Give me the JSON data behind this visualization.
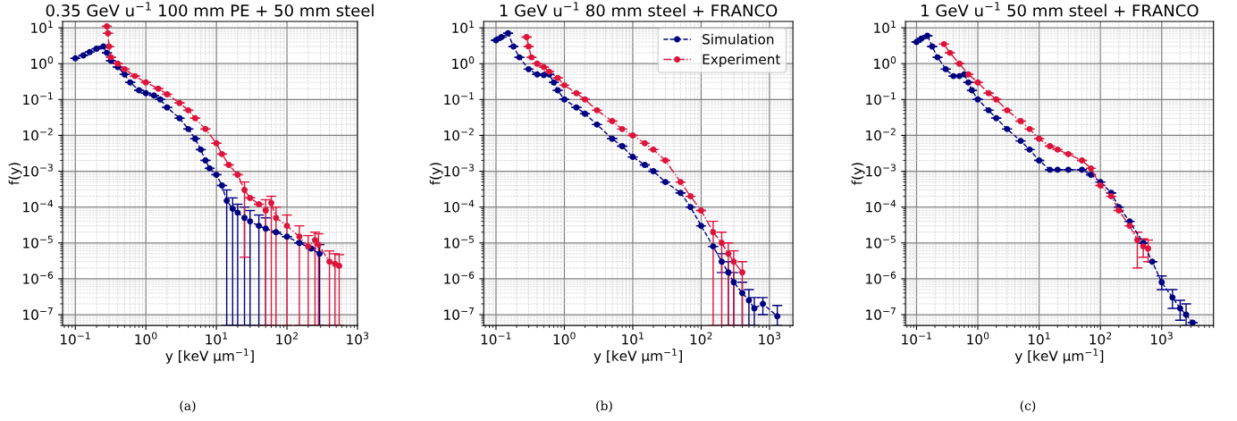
{
  "chart_data": [
    {
      "type": "line",
      "title": "0.35 GeV u$^{−1}$ 100 mm PE + 50 mm steel",
      "xlabel": "y [keV µm$^{−1}$]",
      "ylabel": "f(y)",
      "log": "xy",
      "grid": true,
      "marker": "circle",
      "legend": false,
      "xlim": [
        0.066,
        1000
      ],
      "ylim": [
        5e-08,
        15
      ],
      "xticks": [
        {
          "value": 0.1,
          "label": "10$^{−1}$"
        },
        {
          "value": 1,
          "label": "10$^{0}$"
        },
        {
          "value": 10,
          "label": "10$^{1}$"
        },
        {
          "value": 100,
          "label": "10$^{2}$"
        },
        {
          "value": 1000,
          "label": "10$^{3}$"
        }
      ],
      "yticks": [
        {
          "value": 1e-07,
          "label": "10$^{−7}$"
        },
        {
          "value": 1e-06,
          "label": "10$^{−6}$"
        },
        {
          "value": 1e-05,
          "label": "10$^{−5}$"
        },
        {
          "value": 0.0001,
          "label": "10$^{−4}$"
        },
        {
          "value": 0.001,
          "label": "10$^{−3}$"
        },
        {
          "value": 0.01,
          "label": "10$^{−2}$"
        },
        {
          "value": 0.1,
          "label": "10$^{−1}$"
        },
        {
          "value": 1,
          "label": "10$^{0}$"
        },
        {
          "value": 10,
          "label": "10$^{1}$"
        }
      ],
      "annotations": [
        "(a)"
      ],
      "series": [
        {
          "color": "#000080",
          "line_style": "dashed",
          "x": [
            0.1,
            0.13,
            0.16,
            0.2,
            0.25,
            0.28,
            0.32,
            0.4,
            0.5,
            0.6,
            0.8,
            1.0,
            1.3,
            1.6,
            2,
            3,
            4,
            5,
            6,
            7,
            8,
            10,
            12,
            14,
            17,
            20,
            25,
            30,
            40,
            50,
            70,
            100,
            150,
            220,
            290
          ],
          "values": [
            1.4,
            1.7,
            2.1,
            2.6,
            3.0,
            2.0,
            1.2,
            0.8,
            0.5,
            0.3,
            0.18,
            0.15,
            0.13,
            0.1,
            0.06,
            0.03,
            0.015,
            0.008,
            0.004,
            0.002,
            0.0012,
            0.0008,
            0.0004,
            0.00015,
            9e-05,
            7e-05,
            5e-05,
            4e-05,
            3e-05,
            2.5e-05,
            2e-05,
            1.5e-05,
            1e-05,
            7e-06,
            5e-06
          ],
          "errors": [
            null,
            null,
            null,
            null,
            null,
            null,
            null,
            null,
            null,
            null,
            null,
            null,
            null,
            null,
            null,
            null,
            null,
            null,
            null,
            null,
            null,
            null,
            null,
            [
              5e-08,
              0.0003
            ],
            [
              5e-08,
              0.00018
            ],
            [
              5e-08,
              0.00012
            ],
            [
              5e-08,
              0.0001
            ],
            [
              5e-08,
              8e-05
            ],
            [
              5e-08,
              6e-05
            ],
            [
              5e-08,
              5e-05
            ],
            null,
            null,
            null,
            null,
            [
              5e-08,
              9e-06
            ]
          ]
        },
        {
          "color": "#dc143c",
          "line_style": "dotted",
          "x": [
            0.28,
            0.29,
            0.3,
            0.32,
            0.4,
            0.5,
            0.7,
            1,
            1.5,
            2,
            3,
            4,
            5,
            7,
            10,
            12,
            15,
            20,
            25,
            30,
            40,
            50,
            60,
            70,
            100,
            150,
            200,
            250,
            280,
            400,
            480,
            550
          ],
          "values": [
            11,
            7,
            3,
            1.5,
            1.0,
            0.7,
            0.45,
            0.3,
            0.2,
            0.14,
            0.08,
            0.05,
            0.03,
            0.015,
            0.006,
            0.003,
            0.0015,
            0.0008,
            0.0003,
            0.00018,
            0.00012,
            8e-05,
            0.00013,
            5e-05,
            3e-05,
            1.5e-05,
            8e-06,
            1.2e-05,
            9e-06,
            3e-06,
            2.6e-06,
            2.3e-06
          ],
          "errors": [
            null,
            null,
            null,
            null,
            null,
            null,
            null,
            null,
            null,
            null,
            null,
            null,
            null,
            null,
            null,
            null,
            null,
            null,
            [
              4e-06,
              0.0005
            ],
            null,
            null,
            [
              5e-08,
              0.00016
            ],
            [
              5e-08,
              0.0002
            ],
            [
              5e-08,
              0.0001
            ],
            [
              5e-08,
              6e-05
            ],
            [
              5e-08,
              3e-05
            ],
            [
              5e-08,
              1.6e-05
            ],
            [
              5e-08,
              2e-05
            ],
            [
              5e-08,
              1.8e-05
            ],
            [
              5e-08,
              6e-06
            ],
            [
              5e-08,
              5e-06
            ],
            [
              5e-08,
              4.7e-06
            ]
          ]
        }
      ]
    },
    {
      "type": "line",
      "title": "1 GeV u$^{−1}$ 80 mm steel + FRANCO",
      "xlabel": "y [keV µm$^{−1}$]",
      "ylabel": "f(y)",
      "log": "xy",
      "grid": true,
      "marker": "circle",
      "legend": "top right",
      "xlim": [
        0.066,
        2200
      ],
      "ylim": [
        5e-08,
        15
      ],
      "xticks": [
        {
          "value": 0.1,
          "label": "10$^{−1}$"
        },
        {
          "value": 1,
          "label": "10$^{0}$"
        },
        {
          "value": 10,
          "label": "10$^{1}$"
        },
        {
          "value": 100,
          "label": "10$^{2}$"
        },
        {
          "value": 1000,
          "label": "10$^{3}$"
        }
      ],
      "yticks": [
        {
          "value": 1e-07,
          "label": "10$^{−7}$"
        },
        {
          "value": 1e-06,
          "label": "10$^{−6}$"
        },
        {
          "value": 1e-05,
          "label": "10$^{−5}$"
        },
        {
          "value": 0.0001,
          "label": "10$^{−4}$"
        },
        {
          "value": 0.001,
          "label": "10$^{−3}$"
        },
        {
          "value": 0.01,
          "label": "10$^{−2}$"
        },
        {
          "value": 0.1,
          "label": "10$^{−1}$"
        },
        {
          "value": 1,
          "label": "10$^{0}$"
        },
        {
          "value": 10,
          "label": "10$^{1}$"
        }
      ],
      "annotations": [
        "(b)"
      ],
      "series": [
        {
          "name": "Simulation",
          "color": "#000080",
          "line_style": "dashed",
          "x": [
            0.1,
            0.12,
            0.15,
            0.18,
            0.22,
            0.3,
            0.4,
            0.5,
            0.6,
            0.7,
            0.8,
            1,
            1.5,
            2,
            3,
            5,
            7,
            10,
            15,
            20,
            30,
            50,
            70,
            100,
            150,
            200,
            250,
            300,
            400,
            500,
            600,
            800,
            1300
          ],
          "values": [
            4.5,
            5.5,
            7,
            3,
            1.5,
            0.7,
            0.5,
            0.48,
            0.5,
            0.3,
            0.18,
            0.1,
            0.06,
            0.04,
            0.02,
            0.008,
            0.005,
            0.0025,
            0.0015,
            0.001,
            0.0005,
            0.00025,
            0.0001,
            3e-05,
            8e-06,
            3e-06,
            1.5e-06,
            8e-07,
            4e-07,
            2.5e-07,
            1.5e-07,
            2e-07,
            9e-08
          ],
          "errors": [
            null,
            null,
            null,
            null,
            null,
            null,
            null,
            null,
            null,
            null,
            null,
            null,
            null,
            null,
            null,
            null,
            null,
            null,
            null,
            null,
            null,
            null,
            null,
            null,
            null,
            [
              1.5e-06,
              5e-06
            ],
            [
              5e-08,
              3e-06
            ],
            [
              5e-08,
              1.5e-06
            ],
            [
              5e-08,
              8e-07
            ],
            [
              5e-08,
              5e-07
            ],
            [
              5e-08,
              3e-07
            ],
            [
              1e-07,
              3e-07
            ],
            [
              5e-08,
              1.8e-07
            ]
          ]
        },
        {
          "name": "Experiment",
          "color": "#dc143c",
          "line_style": "dotted",
          "x": [
            0.28,
            0.3,
            0.33,
            0.4,
            0.5,
            0.6,
            0.8,
            1,
            1.5,
            2,
            3,
            5,
            7,
            10,
            15,
            20,
            30,
            50,
            70,
            100,
            150,
            200,
            250,
            300,
            400
          ],
          "values": [
            5.5,
            3,
            1.5,
            1.0,
            0.8,
            0.6,
            0.4,
            0.25,
            0.15,
            0.1,
            0.05,
            0.025,
            0.015,
            0.01,
            0.006,
            0.004,
            0.002,
            0.0005,
            0.0002,
            8e-05,
            2e-05,
            1e-05,
            5e-06,
            3e-06,
            1.5e-06
          ],
          "errors": [
            null,
            null,
            null,
            null,
            null,
            null,
            null,
            null,
            null,
            null,
            null,
            null,
            null,
            null,
            null,
            null,
            null,
            null,
            null,
            null,
            [
              5e-08,
              4e-05
            ],
            [
              5e-08,
              2e-05
            ],
            [
              5e-08,
              1e-05
            ],
            [
              5e-08,
              6e-06
            ],
            [
              5e-08,
              3e-06
            ]
          ]
        }
      ]
    },
    {
      "type": "line",
      "title": "1 GeV u$^{−1}$ 50 mm steel + FRANCO",
      "xlabel": "y [keV µm$^{−1}$]",
      "ylabel": "f(y)",
      "log": "xy",
      "grid": true,
      "marker": "circle",
      "legend": false,
      "xlim": [
        0.066,
        7000
      ],
      "ylim": [
        5e-08,
        15
      ],
      "xticks": [
        {
          "value": 0.1,
          "label": "10$^{−1}$"
        },
        {
          "value": 1,
          "label": "10$^{0}$"
        },
        {
          "value": 10,
          "label": "10$^{1}$"
        },
        {
          "value": 100,
          "label": "10$^{2}$"
        },
        {
          "value": 1000,
          "label": "10$^{3}$"
        }
      ],
      "yticks": [
        {
          "value": 1e-07,
          "label": "10$^{−7}$"
        },
        {
          "value": 1e-06,
          "label": "10$^{−6}$"
        },
        {
          "value": 1e-05,
          "label": "10$^{−5}$"
        },
        {
          "value": 0.0001,
          "label": "10$^{−4}$"
        },
        {
          "value": 0.001,
          "label": "10$^{−3}$"
        },
        {
          "value": 0.01,
          "label": "10$^{−2}$"
        },
        {
          "value": 0.1,
          "label": "10$^{−1}$"
        },
        {
          "value": 1,
          "label": "10$^{0}$"
        },
        {
          "value": 10,
          "label": "10$^{1}$"
        }
      ],
      "annotations": [
        "(c)"
      ],
      "series": [
        {
          "color": "#000080",
          "line_style": "dashed",
          "x": [
            0.1,
            0.12,
            0.15,
            0.18,
            0.22,
            0.3,
            0.4,
            0.5,
            0.6,
            0.7,
            0.8,
            1,
            1.5,
            2,
            3,
            5,
            7,
            10,
            15,
            20,
            30,
            50,
            70,
            100,
            150,
            200,
            300,
            500,
            700,
            1000,
            1500,
            2000,
            2500,
            3200
          ],
          "values": [
            4,
            5,
            6,
            3,
            1.5,
            0.7,
            0.45,
            0.45,
            0.5,
            0.3,
            0.18,
            0.1,
            0.05,
            0.03,
            0.015,
            0.007,
            0.004,
            0.002,
            0.0011,
            0.0011,
            0.0011,
            0.0011,
            0.0008,
            0.0005,
            0.00025,
            0.0001,
            4e-05,
            1e-05,
            3e-06,
            8e-07,
            3e-07,
            1.5e-07,
            1e-07,
            6e-08
          ],
          "errors": [
            null,
            null,
            null,
            null,
            null,
            null,
            null,
            null,
            null,
            null,
            null,
            null,
            null,
            null,
            null,
            null,
            null,
            null,
            null,
            null,
            null,
            null,
            null,
            null,
            null,
            null,
            null,
            null,
            null,
            [
              5e-07,
              1.2e-06
            ],
            [
              1.5e-07,
              5e-07
            ],
            [
              7e-08,
              2.5e-07
            ],
            [
              5e-08,
              2e-07
            ],
            null
          ]
        },
        {
          "color": "#dc143c",
          "line_style": "dotted",
          "x": [
            0.28,
            0.35,
            0.5,
            0.7,
            1,
            1.5,
            2,
            3,
            5,
            7,
            10,
            15,
            20,
            30,
            50,
            70,
            100,
            150,
            200,
            300,
            400,
            500,
            600
          ],
          "values": [
            3.5,
            2,
            1.0,
            0.5,
            0.3,
            0.15,
            0.1,
            0.05,
            0.025,
            0.015,
            0.008,
            0.005,
            0.004,
            0.003,
            0.002,
            0.0012,
            0.0004,
            0.0002,
            8e-05,
            3e-05,
            1.2e-05,
            8e-06,
            7e-06
          ],
          "errors": [
            null,
            null,
            null,
            null,
            null,
            null,
            null,
            null,
            null,
            null,
            null,
            null,
            null,
            null,
            null,
            null,
            null,
            null,
            null,
            null,
            [
              2e-06,
              2e-05
            ],
            [
              4e-06,
              1.3e-05
            ],
            [
              3e-06,
              1.2e-05
            ]
          ]
        }
      ]
    }
  ]
}
